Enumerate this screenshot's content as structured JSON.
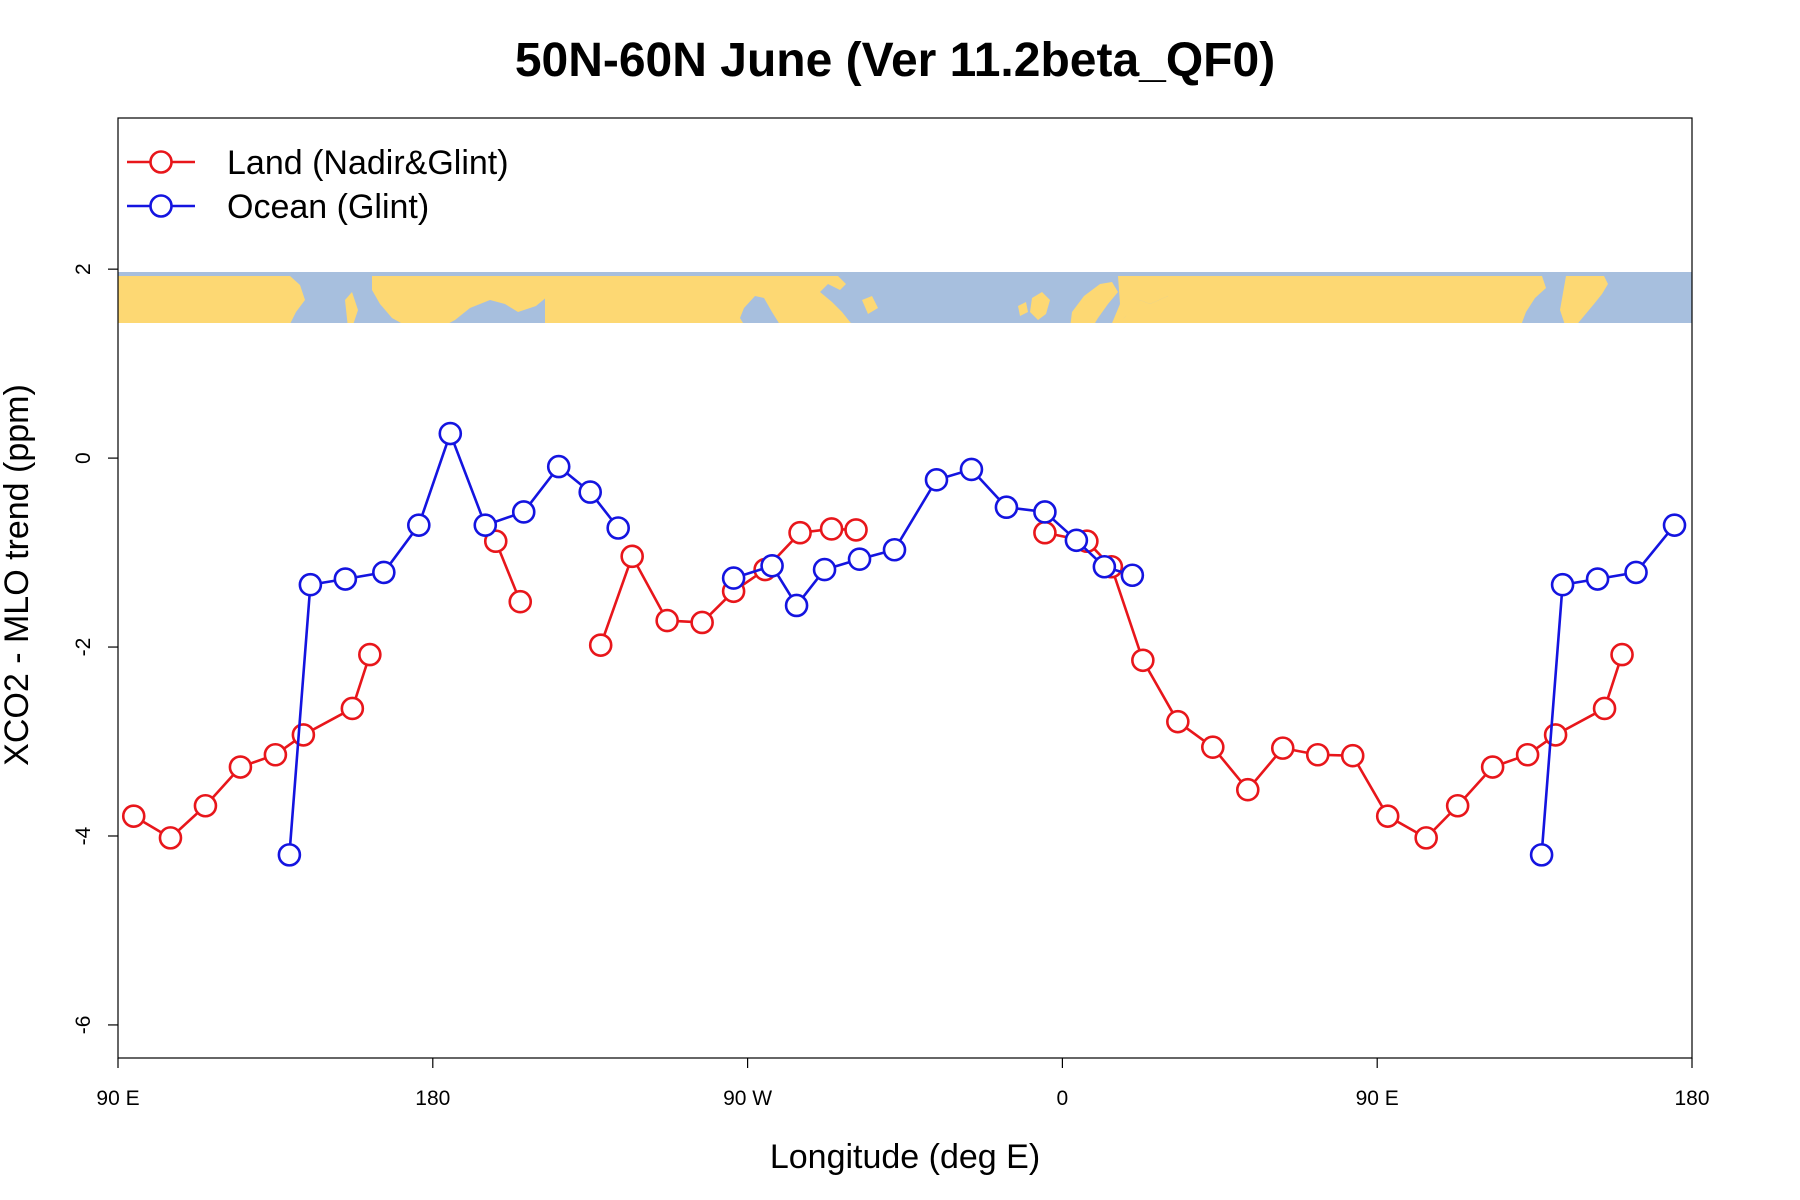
{
  "chart_data": {
    "type": "line",
    "title": "50N-60N June (Ver 11.2beta_QF0)",
    "xlabel": "Longitude (deg E)",
    "ylabel": "XCO2 - MLO trend (ppm)",
    "xlim": [
      90,
      540
    ],
    "ylim": [
      -6.35,
      3.6
    ],
    "xticks": [
      {
        "value": 90,
        "label": "90 E"
      },
      {
        "value": 180,
        "label": "180"
      },
      {
        "value": 270,
        "label": "90 W"
      },
      {
        "value": 360,
        "label": "0"
      },
      {
        "value": 450,
        "label": "90 E"
      },
      {
        "value": 540,
        "label": "180"
      }
    ],
    "yticks": [
      {
        "value": 2,
        "label": "2"
      },
      {
        "value": 0,
        "label": "0"
      },
      {
        "value": -2,
        "label": "-2"
      },
      {
        "value": -4,
        "label": "-4"
      },
      {
        "value": -6,
        "label": "-6"
      }
    ],
    "legend": {
      "placement": "top-left"
    },
    "map_strip": {
      "y_range": [
        1.43,
        1.97
      ],
      "land_color": "#fdd873",
      "ocean_color": "#a7bfde"
    },
    "series": [
      {
        "name": "Land (Nadir&Glint)",
        "color": "#e8161b",
        "segments": [
          [
            [
              94.5,
              -3.79
            ],
            [
              105,
              -4.02
            ],
            [
              115,
              -3.68
            ],
            [
              125,
              -3.27
            ],
            [
              135,
              -3.14
            ],
            [
              143,
              -2.93
            ],
            [
              157,
              -2.65
            ],
            [
              162,
              -2.08
            ]
          ],
          [
            [
              198,
              -0.88
            ],
            [
              205,
              -1.52
            ]
          ],
          [
            [
              228,
              -1.98
            ],
            [
              237,
              -1.04
            ],
            [
              247,
              -1.72
            ],
            [
              257,
              -1.74
            ],
            [
              266,
              -1.41
            ],
            [
              275,
              -1.18
            ],
            [
              285,
              -0.79
            ],
            [
              294,
              -0.75
            ],
            [
              301,
              -0.76
            ]
          ],
          [
            [
              355,
              -0.79
            ],
            [
              367,
              -0.88
            ],
            [
              374,
              -1.15
            ],
            [
              383,
              -2.14
            ],
            [
              393,
              -2.79
            ],
            [
              403,
              -3.06
            ],
            [
              413,
              -3.51
            ],
            [
              423,
              -3.07
            ],
            [
              433,
              -3.14
            ],
            [
              443,
              -3.15
            ],
            [
              453,
              -3.79
            ],
            [
              464,
              -4.02
            ],
            [
              473,
              -3.68
            ],
            [
              483,
              -3.27
            ],
            [
              493,
              -3.14
            ],
            [
              501,
              -2.93
            ],
            [
              515,
              -2.65
            ],
            [
              520,
              -2.08
            ]
          ]
        ]
      },
      {
        "name": "Ocean (Glint)",
        "color": "#1414e0",
        "segments": [
          [
            [
              139,
              -4.2
            ],
            [
              145,
              -1.34
            ],
            [
              155,
              -1.28
            ],
            [
              166,
              -1.21
            ],
            [
              176,
              -0.71
            ],
            [
              185,
              0.26
            ],
            [
              195,
              -0.71
            ],
            [
              206,
              -0.57
            ],
            [
              216,
              -0.09
            ],
            [
              225,
              -0.36
            ],
            [
              233,
              -0.74
            ]
          ],
          [
            [
              266,
              -1.27
            ],
            [
              277,
              -1.14
            ],
            [
              284,
              -1.56
            ],
            [
              292,
              -1.18
            ],
            [
              302,
              -1.07
            ],
            [
              312,
              -0.97
            ],
            [
              324,
              -0.23
            ],
            [
              334,
              -0.12
            ],
            [
              344,
              -0.52
            ],
            [
              355,
              -0.57
            ],
            [
              364,
              -0.87
            ],
            [
              372,
              -1.15
            ],
            [
              380,
              -1.24
            ]
          ],
          [
            [
              497,
              -4.2
            ],
            [
              503,
              -1.34
            ],
            [
              513,
              -1.28
            ],
            [
              524,
              -1.21
            ],
            [
              535,
              -0.71
            ]
          ]
        ]
      }
    ]
  }
}
